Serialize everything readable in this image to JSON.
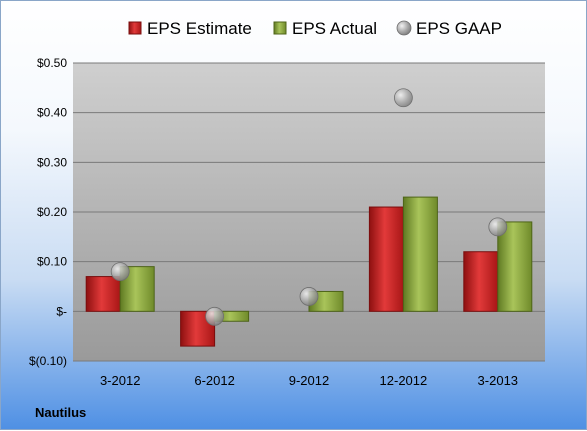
{
  "chart_data": {
    "type": "bar",
    "categories": [
      "3-2012",
      "6-2012",
      "9-2012",
      "12-2012",
      "3-2013"
    ],
    "series": [
      {
        "name": "EPS Estimate",
        "values": [
          0.07,
          -0.07,
          null,
          0.21,
          0.12
        ],
        "color": "#c81f1f"
      },
      {
        "name": "EPS Actual",
        "values": [
          0.09,
          -0.02,
          0.04,
          0.23,
          0.18
        ],
        "color": "#8aa83a"
      }
    ],
    "gaap": {
      "name": "EPS GAAP",
      "values": [
        0.08,
        -0.01,
        0.03,
        0.43,
        0.17
      ],
      "color": "#9a9a9a"
    },
    "ylim": [
      -0.1,
      0.5
    ],
    "yticks": [
      {
        "value": 0.5,
        "label": "$0.50"
      },
      {
        "value": 0.4,
        "label": "$0.40"
      },
      {
        "value": 0.3,
        "label": "$0.30"
      },
      {
        "value": 0.2,
        "label": "$0.20"
      },
      {
        "value": 0.1,
        "label": "$0.10"
      },
      {
        "value": 0.0,
        "label": "$-"
      },
      {
        "value": -0.1,
        "label": "$(0.10)"
      }
    ],
    "grid": true,
    "legend_position": "top",
    "company": "Nautilus"
  }
}
